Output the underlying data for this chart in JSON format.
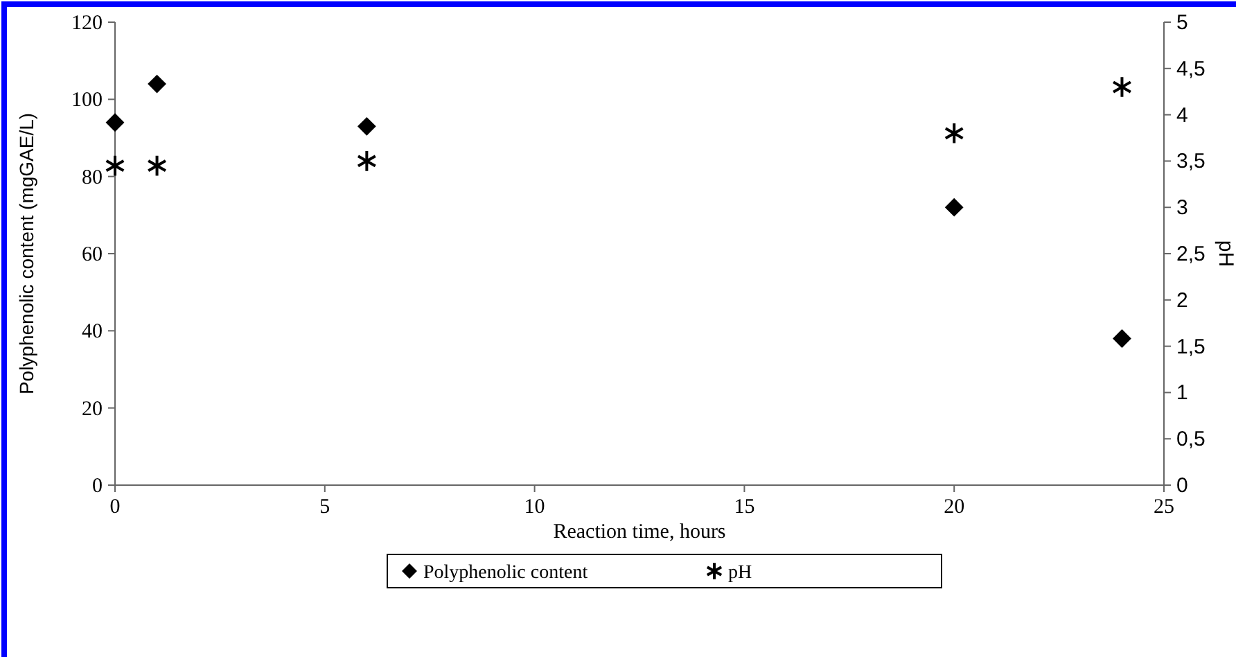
{
  "chart_data": {
    "type": "scatter",
    "xlabel": "Reaction time, hours",
    "ylabel": "Polyphenolic content (mgGAE/L)",
    "y2label": "pH",
    "x": [
      0,
      1,
      6,
      20,
      24
    ],
    "series": [
      {
        "name": "Polyphenolic content",
        "color": "#000000",
        "marker": "diamond",
        "values": [
          94,
          104,
          93,
          72,
          38
        ]
      },
      {
        "name": "pH",
        "color": "#000000",
        "marker": "cross",
        "axis": "y2",
        "values": [
          3.45,
          3.45,
          3.5,
          3.8,
          4.3
        ]
      }
    ],
    "xlim": [
      0,
      25
    ],
    "xticks": [
      0,
      5,
      10,
      15,
      20,
      25
    ],
    "ylim": [
      0,
      120
    ],
    "yticks": [
      0,
      20,
      40,
      60,
      80,
      100,
      120
    ],
    "y2lim": [
      0,
      5
    ],
    "y2ticks": [
      0,
      {
        "value": 0.5,
        "label": "0,5"
      },
      1,
      {
        "value": 1.5,
        "label": "1,5"
      },
      2,
      {
        "value": 2.5,
        "label": "2,5"
      },
      3,
      {
        "value": 3.5,
        "label": "3,5"
      },
      4,
      {
        "value": 4.5,
        "label": "4,5"
      },
      5
    ],
    "grid": false,
    "legend": "bottom"
  }
}
